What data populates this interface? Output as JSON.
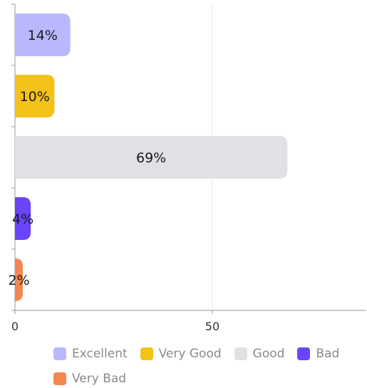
{
  "chart_data": {
    "type": "bar",
    "orientation": "horizontal",
    "categories": [
      "Excellent",
      "Very Good",
      "Good",
      "Bad",
      "Very Bad"
    ],
    "values": [
      14,
      10,
      69,
      4,
      2
    ],
    "data_labels": [
      "14%",
      "10%",
      "69%",
      "4%",
      "2%"
    ],
    "colors": [
      "#b9b8fd",
      "#f5c21a",
      "#e1e1e5",
      "#6a45fb",
      "#f4874f"
    ],
    "xlim": [
      0,
      89
    ],
    "x_ticks": [
      0,
      50
    ],
    "x_tick_labels": [
      "0",
      "50"
    ],
    "grid": "vertical",
    "legend_position": "bottom",
    "title": "",
    "xlabel": "",
    "ylabel": ""
  }
}
